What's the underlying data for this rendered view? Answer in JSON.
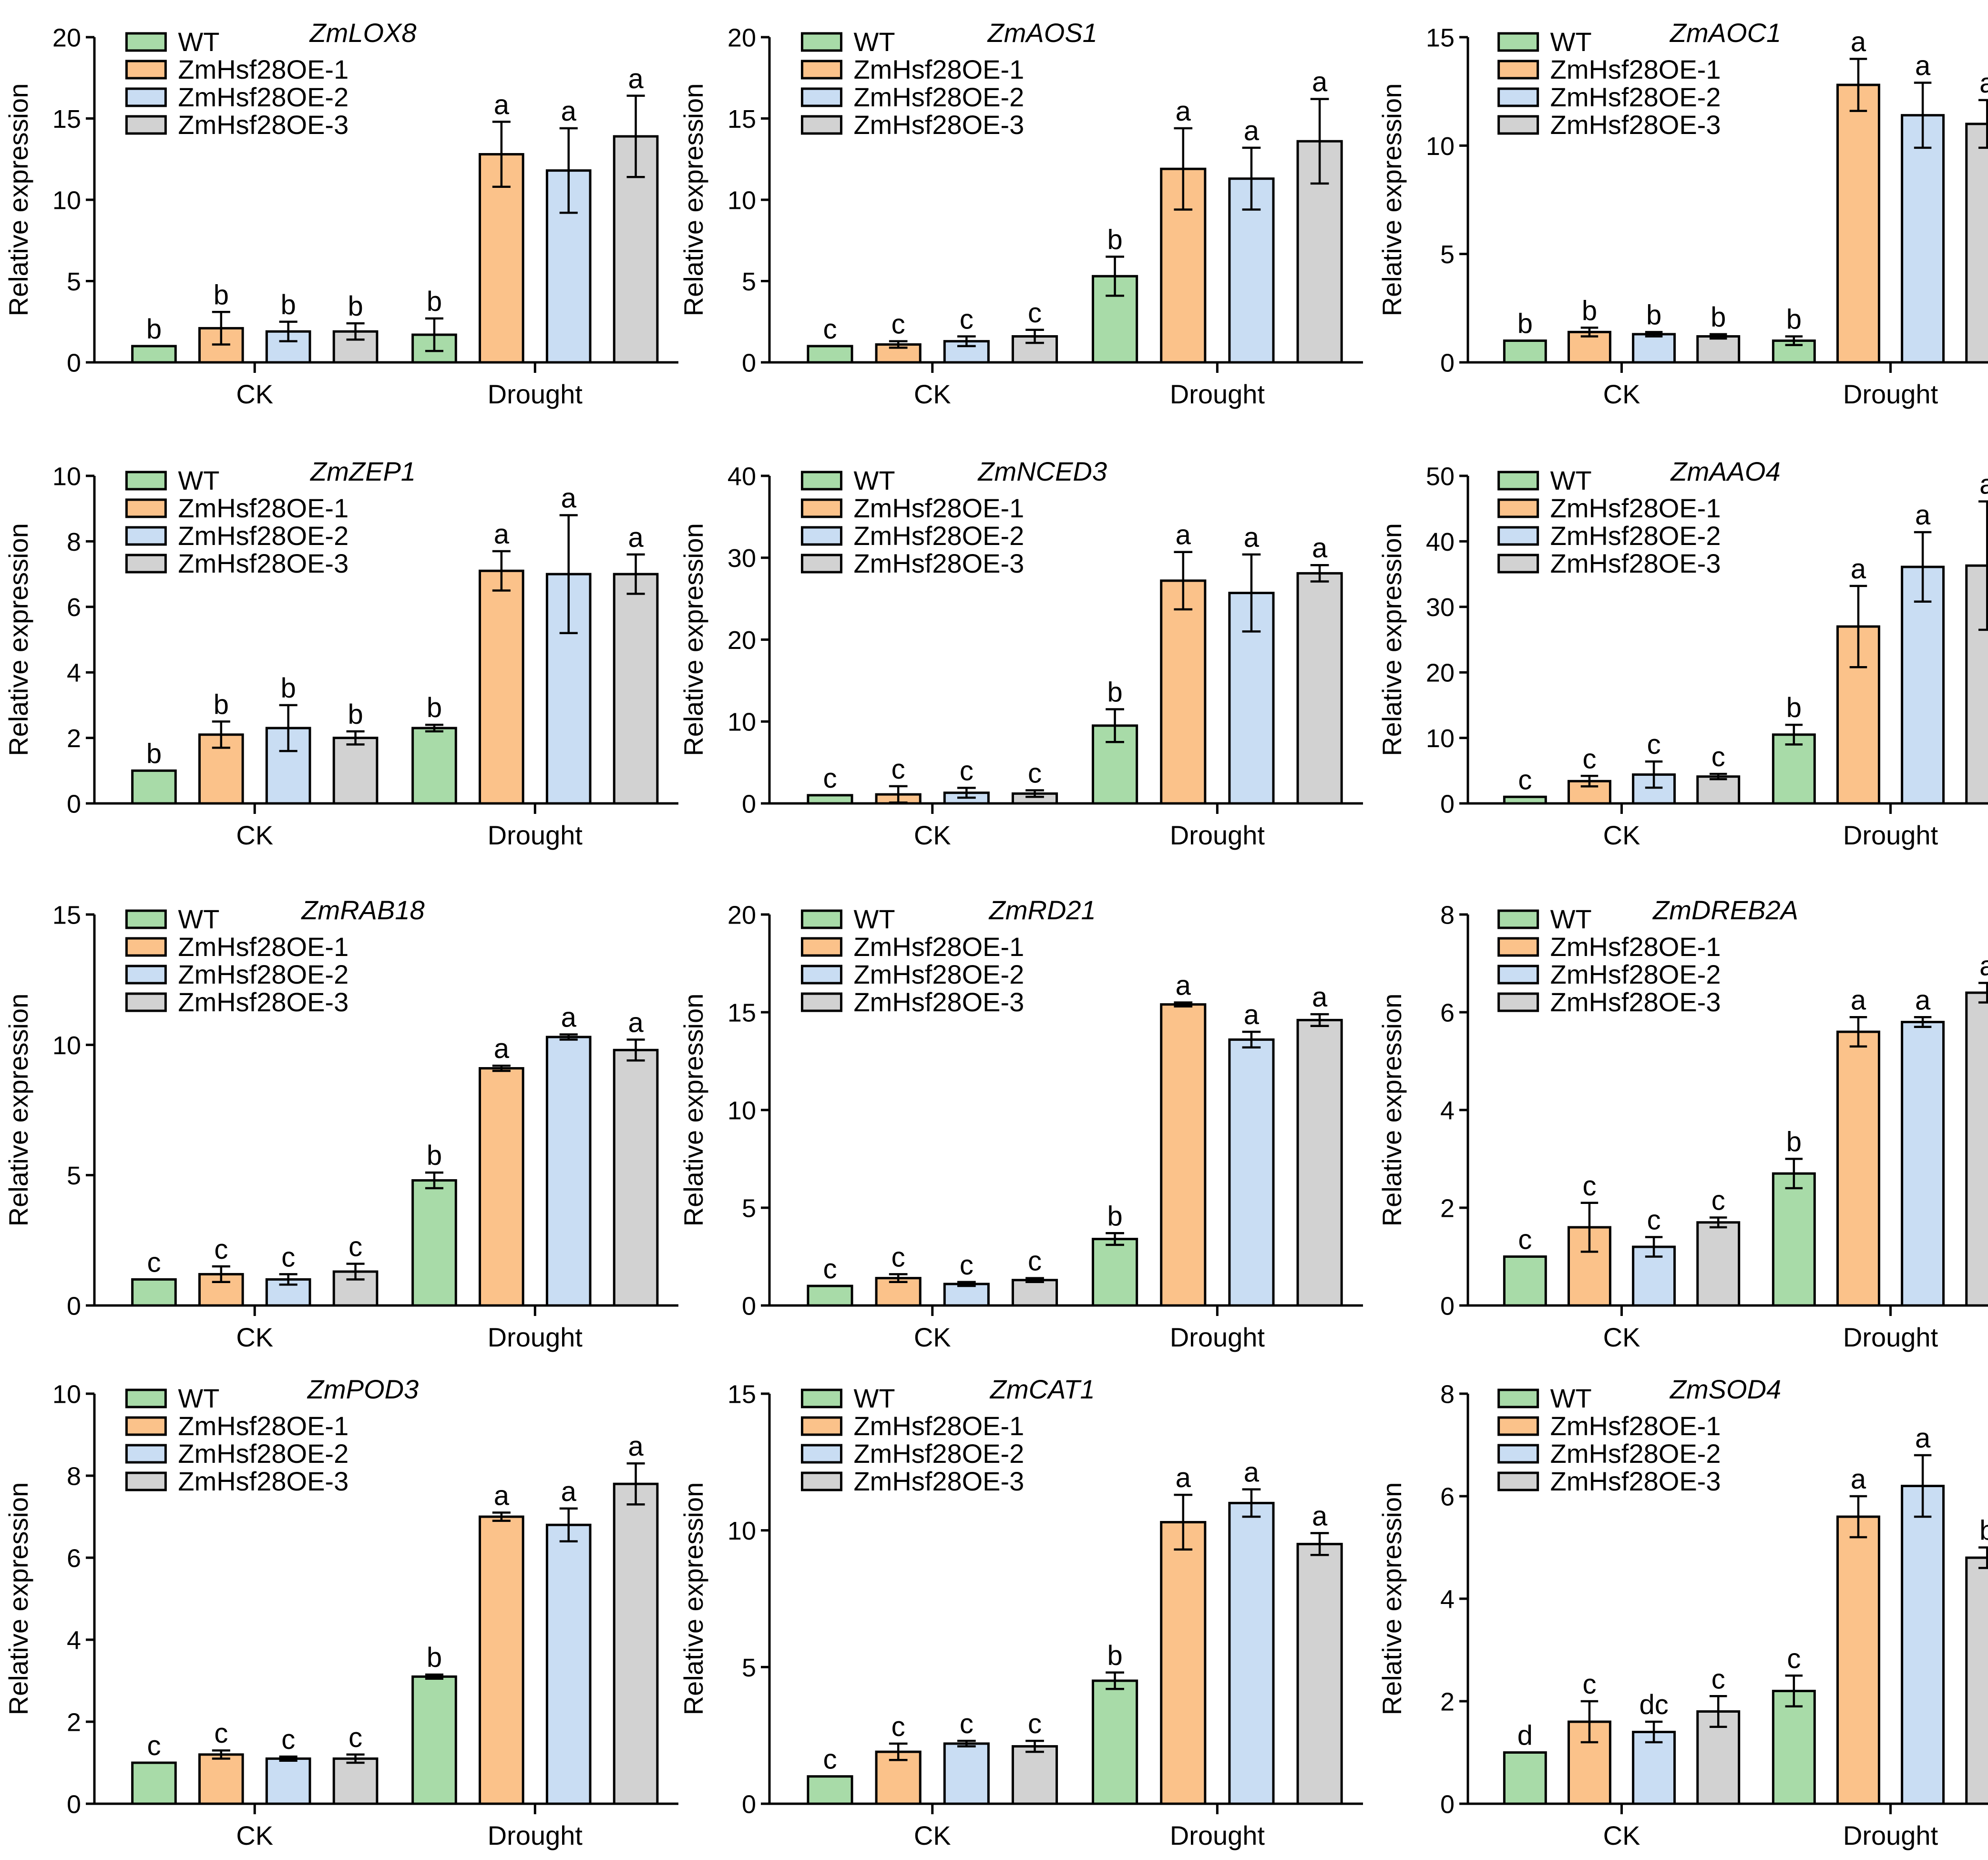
{
  "figure": {
    "legend_labels": [
      "WT",
      "ZmHsf28OE-1",
      "ZmHsf28OE-2",
      "ZmHsf28OE-3"
    ],
    "colors": [
      "#a8dba8",
      "#fbc28a",
      "#c9ddf3",
      "#d2d2d2"
    ],
    "bar_edge_color": "#000000"
  },
  "chart_data": [
    {
      "type": "bar",
      "title": "ZmLOX8",
      "ylabel": "Relative expression",
      "ylim": [
        0,
        20
      ],
      "yticks": [
        0,
        5,
        10,
        15,
        20
      ],
      "categories": [
        "CK",
        "Drought"
      ],
      "series": [
        {
          "name": "WT",
          "values": [
            1.0,
            1.7
          ],
          "errors": [
            0.0,
            1.0
          ],
          "letters": [
            "b",
            "b"
          ]
        },
        {
          "name": "ZmHsf28OE-1",
          "values": [
            2.1,
            12.8
          ],
          "errors": [
            1.0,
            2.0
          ],
          "letters": [
            "b",
            "a"
          ]
        },
        {
          "name": "ZmHsf28OE-2",
          "values": [
            1.9,
            11.8
          ],
          "errors": [
            0.6,
            2.6
          ],
          "letters": [
            "b",
            "a"
          ]
        },
        {
          "name": "ZmHsf28OE-3",
          "values": [
            1.9,
            13.9
          ],
          "errors": [
            0.5,
            2.5
          ],
          "letters": [
            "b",
            "a"
          ]
        }
      ]
    },
    {
      "type": "bar",
      "title": "ZmAOS1",
      "ylabel": "Relative expression",
      "ylim": [
        0,
        20
      ],
      "yticks": [
        0,
        5,
        10,
        15,
        20
      ],
      "categories": [
        "CK",
        "Drought"
      ],
      "series": [
        {
          "name": "WT",
          "values": [
            1.0,
            5.3
          ],
          "errors": [
            0.0,
            1.2
          ],
          "letters": [
            "c",
            "b"
          ]
        },
        {
          "name": "ZmHsf28OE-1",
          "values": [
            1.1,
            11.9
          ],
          "errors": [
            0.2,
            2.5
          ],
          "letters": [
            "c",
            "a"
          ]
        },
        {
          "name": "ZmHsf28OE-2",
          "values": [
            1.3,
            11.3
          ],
          "errors": [
            0.3,
            1.9
          ],
          "letters": [
            "c",
            "a"
          ]
        },
        {
          "name": "ZmHsf28OE-3",
          "values": [
            1.6,
            13.6
          ],
          "errors": [
            0.4,
            2.6
          ],
          "letters": [
            "c",
            "a"
          ]
        }
      ]
    },
    {
      "type": "bar",
      "title": "ZmAOC1",
      "ylabel": "Relative expression",
      "ylim": [
        0,
        15
      ],
      "yticks": [
        0,
        5,
        10,
        15
      ],
      "categories": [
        "CK",
        "Drought"
      ],
      "series": [
        {
          "name": "WT",
          "values": [
            1.0,
            1.0
          ],
          "errors": [
            0.0,
            0.2
          ],
          "letters": [
            "b",
            "b"
          ]
        },
        {
          "name": "ZmHsf28OE-1",
          "values": [
            1.4,
            12.8
          ],
          "errors": [
            0.2,
            1.2
          ],
          "letters": [
            "b",
            "a"
          ]
        },
        {
          "name": "ZmHsf28OE-2",
          "values": [
            1.3,
            11.4
          ],
          "errors": [
            0.1,
            1.5
          ],
          "letters": [
            "b",
            "a"
          ]
        },
        {
          "name": "ZmHsf28OE-3",
          "values": [
            1.2,
            11.0
          ],
          "errors": [
            0.1,
            1.1
          ],
          "letters": [
            "b",
            "a"
          ]
        }
      ]
    },
    {
      "type": "bar",
      "title": "ZmZEP1",
      "ylabel": "Relative expression",
      "ylim": [
        0,
        10
      ],
      "yticks": [
        0,
        2,
        4,
        6,
        8,
        10
      ],
      "categories": [
        "CK",
        "Drought"
      ],
      "series": [
        {
          "name": "WT",
          "values": [
            1.0,
            2.3
          ],
          "errors": [
            0.0,
            0.1
          ],
          "letters": [
            "b",
            "b"
          ]
        },
        {
          "name": "ZmHsf28OE-1",
          "values": [
            2.1,
            7.1
          ],
          "errors": [
            0.4,
            0.6
          ],
          "letters": [
            "b",
            "a"
          ]
        },
        {
          "name": "ZmHsf28OE-2",
          "values": [
            2.3,
            7.0
          ],
          "errors": [
            0.7,
            1.8
          ],
          "letters": [
            "b",
            "a"
          ]
        },
        {
          "name": "ZmHsf28OE-3",
          "values": [
            2.0,
            7.0
          ],
          "errors": [
            0.2,
            0.6
          ],
          "letters": [
            "b",
            "a"
          ]
        }
      ]
    },
    {
      "type": "bar",
      "title": "ZmNCED3",
      "ylabel": "Relative expression",
      "ylim": [
        0,
        40
      ],
      "yticks": [
        0,
        10,
        20,
        30,
        40
      ],
      "categories": [
        "CK",
        "Drought"
      ],
      "series": [
        {
          "name": "WT",
          "values": [
            1.0,
            9.5
          ],
          "errors": [
            0.0,
            2.0
          ],
          "letters": [
            "c",
            "b"
          ]
        },
        {
          "name": "ZmHsf28OE-1",
          "values": [
            1.1,
            27.2
          ],
          "errors": [
            1.0,
            3.5
          ],
          "letters": [
            "c",
            "a"
          ]
        },
        {
          "name": "ZmHsf28OE-2",
          "values": [
            1.3,
            25.7
          ],
          "errors": [
            0.6,
            4.7
          ],
          "letters": [
            "c",
            "a"
          ]
        },
        {
          "name": "ZmHsf28OE-3",
          "values": [
            1.2,
            28.1
          ],
          "errors": [
            0.4,
            1.0
          ],
          "letters": [
            "c",
            "a"
          ]
        }
      ]
    },
    {
      "type": "bar",
      "title": "ZmAAO4",
      "ylabel": "Relative expression",
      "ylim": [
        0,
        50
      ],
      "yticks": [
        0,
        10,
        20,
        30,
        40,
        50
      ],
      "categories": [
        "CK",
        "Drought"
      ],
      "series": [
        {
          "name": "WT",
          "values": [
            1.0,
            10.5
          ],
          "errors": [
            0.0,
            1.5
          ],
          "letters": [
            "c",
            "b"
          ]
        },
        {
          "name": "ZmHsf28OE-1",
          "values": [
            3.4,
            27.0
          ],
          "errors": [
            0.8,
            6.2
          ],
          "letters": [
            "c",
            "a"
          ]
        },
        {
          "name": "ZmHsf28OE-2",
          "values": [
            4.4,
            36.1
          ],
          "errors": [
            2.0,
            5.3
          ],
          "letters": [
            "c",
            "a"
          ]
        },
        {
          "name": "ZmHsf28OE-3",
          "values": [
            4.1,
            36.3
          ],
          "errors": [
            0.4,
            9.8
          ],
          "letters": [
            "c",
            "a"
          ]
        }
      ]
    },
    {
      "type": "bar",
      "title": "ZmRAB18",
      "ylabel": "Relative expression",
      "ylim": [
        0,
        15
      ],
      "yticks": [
        0,
        5,
        10,
        15
      ],
      "categories": [
        "CK",
        "Drought"
      ],
      "series": [
        {
          "name": "WT",
          "values": [
            1.0,
            4.8
          ],
          "errors": [
            0.0,
            0.3
          ],
          "letters": [
            "c",
            "b"
          ]
        },
        {
          "name": "ZmHsf28OE-1",
          "values": [
            1.2,
            9.1
          ],
          "errors": [
            0.3,
            0.1
          ],
          "letters": [
            "c",
            "a"
          ]
        },
        {
          "name": "ZmHsf28OE-2",
          "values": [
            1.0,
            10.3
          ],
          "errors": [
            0.2,
            0.1
          ],
          "letters": [
            "c",
            "a"
          ]
        },
        {
          "name": "ZmHsf28OE-3",
          "values": [
            1.3,
            9.8
          ],
          "errors": [
            0.3,
            0.4
          ],
          "letters": [
            "c",
            "a"
          ]
        }
      ]
    },
    {
      "type": "bar",
      "title": "ZmRD21",
      "ylabel": "Relative expression",
      "ylim": [
        0,
        20
      ],
      "yticks": [
        0,
        5,
        10,
        15,
        20
      ],
      "categories": [
        "CK",
        "Drought"
      ],
      "series": [
        {
          "name": "WT",
          "values": [
            1.0,
            3.4
          ],
          "errors": [
            0.0,
            0.3
          ],
          "letters": [
            "c",
            "b"
          ]
        },
        {
          "name": "ZmHsf28OE-1",
          "values": [
            1.4,
            15.4
          ],
          "errors": [
            0.2,
            0.1
          ],
          "letters": [
            "c",
            "a"
          ]
        },
        {
          "name": "ZmHsf28OE-2",
          "values": [
            1.1,
            13.6
          ],
          "errors": [
            0.1,
            0.4
          ],
          "letters": [
            "c",
            "a"
          ]
        },
        {
          "name": "ZmHsf28OE-3",
          "values": [
            1.3,
            14.6
          ],
          "errors": [
            0.1,
            0.3
          ],
          "letters": [
            "c",
            "a"
          ]
        }
      ]
    },
    {
      "type": "bar",
      "title": "ZmDREB2A",
      "ylabel": "Relative expression",
      "ylim": [
        0,
        8
      ],
      "yticks": [
        0,
        2,
        4,
        6,
        8
      ],
      "categories": [
        "CK",
        "Drought"
      ],
      "series": [
        {
          "name": "WT",
          "values": [
            1.0,
            2.7
          ],
          "errors": [
            0.0,
            0.3
          ],
          "letters": [
            "c",
            "b"
          ]
        },
        {
          "name": "ZmHsf28OE-1",
          "values": [
            1.6,
            5.6
          ],
          "errors": [
            0.5,
            0.3
          ],
          "letters": [
            "c",
            "a"
          ]
        },
        {
          "name": "ZmHsf28OE-2",
          "values": [
            1.2,
            5.8
          ],
          "errors": [
            0.2,
            0.1
          ],
          "letters": [
            "c",
            "a"
          ]
        },
        {
          "name": "ZmHsf28OE-3",
          "values": [
            1.7,
            6.4
          ],
          "errors": [
            0.1,
            0.2
          ],
          "letters": [
            "c",
            "a"
          ]
        }
      ]
    },
    {
      "type": "bar",
      "title": "ZmPOD3",
      "ylabel": "Relative expression",
      "ylim": [
        0,
        10
      ],
      "yticks": [
        0,
        2,
        4,
        6,
        8,
        10
      ],
      "categories": [
        "CK",
        "Drought"
      ],
      "series": [
        {
          "name": "WT",
          "values": [
            1.0,
            3.1
          ],
          "errors": [
            0.0,
            0.05
          ],
          "letters": [
            "c",
            "b"
          ]
        },
        {
          "name": "ZmHsf28OE-1",
          "values": [
            1.2,
            7.0
          ],
          "errors": [
            0.1,
            0.1
          ],
          "letters": [
            "c",
            "a"
          ]
        },
        {
          "name": "ZmHsf28OE-2",
          "values": [
            1.1,
            6.8
          ],
          "errors": [
            0.05,
            0.4
          ],
          "letters": [
            "c",
            "a"
          ]
        },
        {
          "name": "ZmHsf28OE-3",
          "values": [
            1.1,
            7.8
          ],
          "errors": [
            0.1,
            0.5
          ],
          "letters": [
            "c",
            "a"
          ]
        }
      ]
    },
    {
      "type": "bar",
      "title": "ZmCAT1",
      "ylabel": "Relative expression",
      "ylim": [
        0,
        15
      ],
      "yticks": [
        0,
        5,
        10,
        15
      ],
      "categories": [
        "CK",
        "Drought"
      ],
      "series": [
        {
          "name": "WT",
          "values": [
            1.0,
            4.5
          ],
          "errors": [
            0.0,
            0.3
          ],
          "letters": [
            "c",
            "b"
          ]
        },
        {
          "name": "ZmHsf28OE-1",
          "values": [
            1.9,
            10.3
          ],
          "errors": [
            0.3,
            1.0
          ],
          "letters": [
            "c",
            "a"
          ]
        },
        {
          "name": "ZmHsf28OE-2",
          "values": [
            2.2,
            11.0
          ],
          "errors": [
            0.1,
            0.5
          ],
          "letters": [
            "c",
            "a"
          ]
        },
        {
          "name": "ZmHsf28OE-3",
          "values": [
            2.1,
            9.5
          ],
          "errors": [
            0.2,
            0.4
          ],
          "letters": [
            "c",
            "a"
          ]
        }
      ]
    },
    {
      "type": "bar",
      "title": "ZmSOD4",
      "ylabel": "Relative expression",
      "ylim": [
        0,
        8
      ],
      "yticks": [
        0,
        2,
        4,
        6,
        8
      ],
      "categories": [
        "CK",
        "Drought"
      ],
      "series": [
        {
          "name": "WT",
          "values": [
            1.0,
            2.2
          ],
          "errors": [
            0.0,
            0.3
          ],
          "letters": [
            "d",
            "c"
          ]
        },
        {
          "name": "ZmHsf28OE-1",
          "values": [
            1.6,
            5.6
          ],
          "errors": [
            0.4,
            0.4
          ],
          "letters": [
            "c",
            "a"
          ]
        },
        {
          "name": "ZmHsf28OE-2",
          "values": [
            1.4,
            6.2
          ],
          "errors": [
            0.2,
            0.6
          ],
          "letters": [
            "dc",
            "a"
          ]
        },
        {
          "name": "ZmHsf28OE-3",
          "values": [
            1.8,
            4.8
          ],
          "errors": [
            0.3,
            0.2
          ],
          "letters": [
            "c",
            "b"
          ]
        }
      ]
    }
  ]
}
